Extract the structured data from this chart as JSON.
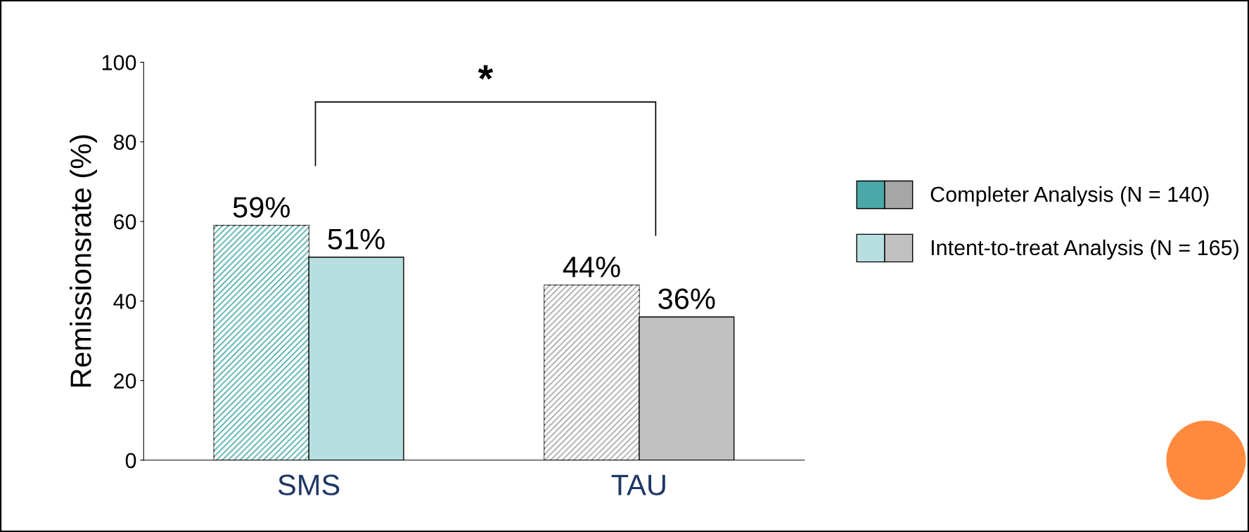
{
  "chart_data": {
    "type": "bar",
    "ylabel": "Remissionsrate (%)",
    "categories": [
      "SMS",
      "TAU"
    ],
    "series": [
      {
        "name": "Completer Analysis (N = 140)",
        "colors": [
          "#4aa8a8",
          "#a6a6a6"
        ],
        "values": [
          59,
          44
        ],
        "value_labels": [
          "59%",
          "44%"
        ]
      },
      {
        "name": "Intent-to-treat Analysis (N = 165)",
        "colors": [
          "#b7dfe0",
          "#c0c0c0"
        ],
        "values": [
          51,
          36
        ],
        "value_labels": [
          "51%",
          "36%"
        ]
      }
    ],
    "ylim": [
      0,
      100
    ],
    "yticks": [
      0,
      20,
      40,
      60,
      80,
      100
    ],
    "grid": false,
    "legend": "right",
    "annotations": [
      "*"
    ]
  }
}
